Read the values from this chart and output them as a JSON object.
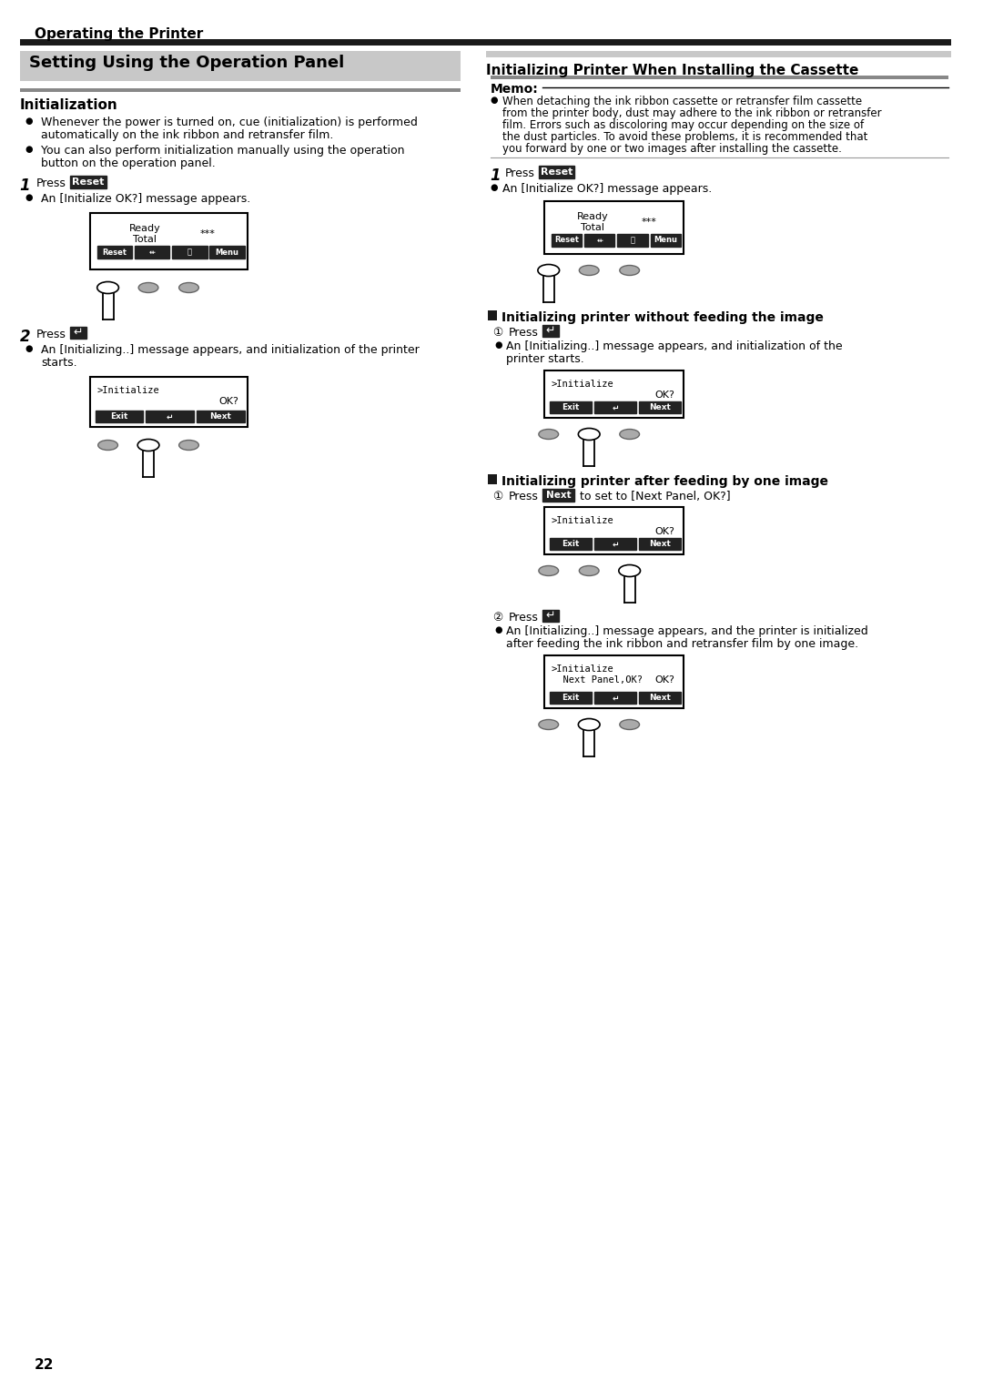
{
  "page_title": "Operating the Printer",
  "section_title": "Setting Using the Operation Panel",
  "left_section_header": "Initialization",
  "left_step1_btn": "Reset",
  "left_step1_bullet": "An [Initialize OK?] message appears.",
  "left_step2_bullet_lines": [
    "An [Initializing..] message appears, and initialization of the printer",
    "starts."
  ],
  "right_section_header": "Initializing Printer When Installing the Cassette",
  "memo_label": "Memo:",
  "memo_lines": [
    "When detaching the ink ribbon cassette or retransfer film cassette",
    "from the printer body, dust may adhere to the ink ribbon or retransfer",
    "film. Errors such as discoloring may occur depending on the size of",
    "the dust particles. To avoid these problems, it is recommended that",
    "you forward by one or two images after installing the cassette."
  ],
  "right_step1_btn": "Reset",
  "right_step1_bullet": "An [Initialize OK?] message appears.",
  "section_no_feed": "Initializing printer without feeding the image",
  "no_feed_bullet_lines": [
    "An [Initializing..] message appears, and initialization of the",
    "printer starts."
  ],
  "section_one_image": "Initializing printer after feeding by one image",
  "one_image_step1_text": "to set to [Next Panel, OK?]",
  "one_image_step2_bullet_lines": [
    "An [Initializing..] message appears, and the printer is initialized",
    "after feeding the ink ribbon and retransfer film by one image."
  ],
  "page_number": "22",
  "bg_color": "#ffffff",
  "header_bar_color": "#1a1a1a",
  "section_bg_color": "#c8c8c8",
  "divider_color": "#888888"
}
